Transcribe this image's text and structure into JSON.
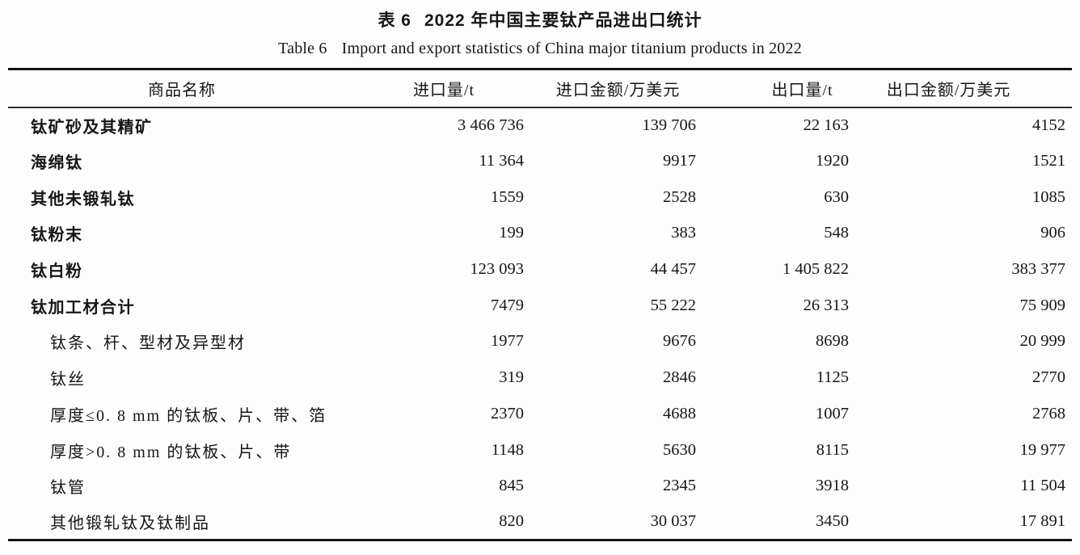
{
  "titles": {
    "cn_label": "表 6",
    "cn_text": "2022 年中国主要钛产品进出口统计",
    "en_label": "Table 6",
    "en_text": "Import and export statistics of China major titanium products in 2022"
  },
  "table": {
    "columns": [
      {
        "label": "商品名称"
      },
      {
        "label": "进口量/t"
      },
      {
        "label": "进口金额/万美元"
      },
      {
        "label": "出口量/t"
      },
      {
        "label": "出口金额/万美元"
      }
    ],
    "rows": [
      {
        "name": "钛矿砂及其精矿",
        "level": "main",
        "import_volume": "3 466 736",
        "import_value": "139 706",
        "export_volume": "22 163",
        "export_value": "4152"
      },
      {
        "name": "海绵钛",
        "level": "main",
        "import_volume": "11 364",
        "import_value": "9917",
        "export_volume": "1920",
        "export_value": "1521"
      },
      {
        "name": "其他未锻轧钛",
        "level": "main",
        "import_volume": "1559",
        "import_value": "2528",
        "export_volume": "630",
        "export_value": "1085"
      },
      {
        "name": "钛粉末",
        "level": "main",
        "import_volume": "199",
        "import_value": "383",
        "export_volume": "548",
        "export_value": "906"
      },
      {
        "name": "钛白粉",
        "level": "main",
        "import_volume": "123 093",
        "import_value": "44 457",
        "export_volume": "1 405 822",
        "export_value": "383 377"
      },
      {
        "name": "钛加工材合计",
        "level": "main",
        "import_volume": "7479",
        "import_value": "55 222",
        "export_volume": "26 313",
        "export_value": "75 909"
      },
      {
        "name": "钛条、杆、型材及异型材",
        "level": "sub",
        "import_volume": "1977",
        "import_value": "9676",
        "export_volume": "8698",
        "export_value": "20 999"
      },
      {
        "name": "钛丝",
        "level": "sub",
        "import_volume": "319",
        "import_value": "2846",
        "export_volume": "1125",
        "export_value": "2770"
      },
      {
        "name": "厚度≤0. 8 mm 的钛板、片、带、箔",
        "level": "sub",
        "import_volume": "2370",
        "import_value": "4688",
        "export_volume": "1007",
        "export_value": "2768"
      },
      {
        "name": "厚度>0. 8 mm 的钛板、片、带",
        "level": "sub",
        "import_volume": "1148",
        "import_value": "5630",
        "export_volume": "8115",
        "export_value": "19 977"
      },
      {
        "name": "钛管",
        "level": "sub",
        "import_volume": "845",
        "import_value": "2345",
        "export_volume": "3918",
        "export_value": "11 504"
      },
      {
        "name": "其他锻轧钛及钛制品",
        "level": "sub",
        "import_volume": "820",
        "import_value": "30 037",
        "export_volume": "3450",
        "export_value": "17 891"
      }
    ]
  }
}
